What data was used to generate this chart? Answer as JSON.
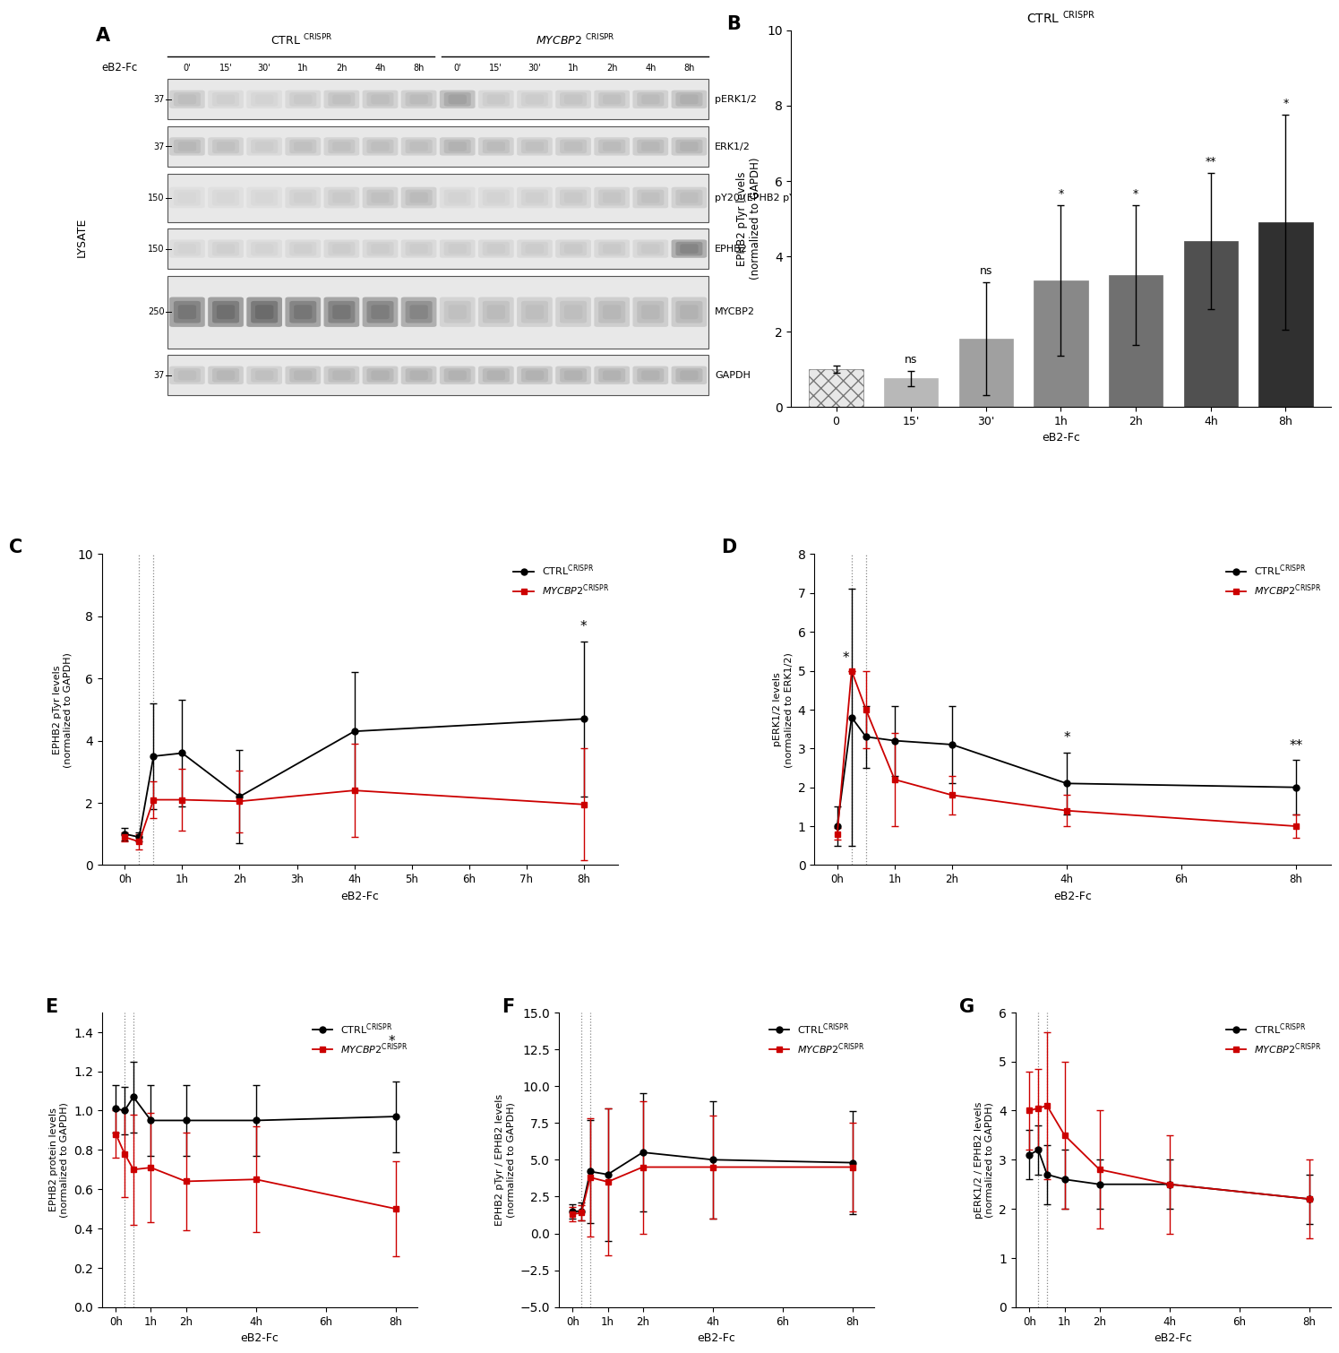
{
  "panel_B": {
    "categories": [
      "0",
      "15'",
      "30'",
      "1h",
      "2h",
      "4h",
      "8h"
    ],
    "values": [
      1.0,
      0.75,
      1.8,
      3.35,
      3.5,
      4.4,
      4.9
    ],
    "errors": [
      0.1,
      0.2,
      1.5,
      2.0,
      1.85,
      1.8,
      2.85
    ],
    "bar_colors": [
      "#d0d0d0",
      "#b8b8b8",
      "#a0a0a0",
      "#888888",
      "#707070",
      "#505050",
      "#303030"
    ],
    "significance": [
      "ns",
      "ns",
      "*",
      "*",
      "**",
      "*"
    ],
    "ylabel": "EPHB2 pTyr levels\n(normalized to GAPDH)",
    "xlabel": "eB2-Fc",
    "ylim": [
      0,
      10
    ]
  },
  "panel_C": {
    "ctrl_x": [
      0,
      0.25,
      0.5,
      1,
      2,
      4,
      8
    ],
    "ctrl_y": [
      1.0,
      0.9,
      3.5,
      3.6,
      2.2,
      4.3,
      4.7
    ],
    "ctrl_err": [
      0.2,
      0.15,
      1.7,
      1.7,
      1.5,
      1.9,
      2.5
    ],
    "mycbp2_x": [
      0,
      0.25,
      0.5,
      1,
      2,
      4,
      8
    ],
    "mycbp2_y": [
      0.9,
      0.75,
      2.1,
      2.1,
      2.05,
      2.4,
      1.95
    ],
    "mycbp2_err": [
      0.15,
      0.25,
      0.6,
      1.0,
      1.0,
      1.5,
      1.8
    ],
    "ylabel": "EPHB2 pTyr levels\n(normalized to GAPDH)",
    "xlabel": "eB2-Fc",
    "ylim": [
      0,
      10
    ],
    "xticks": [
      0,
      1,
      2,
      3,
      4,
      5,
      6,
      7,
      8
    ],
    "xticklabels": [
      "0h",
      "1h",
      "2h",
      "3h",
      "4h",
      "5h",
      "6h",
      "7h",
      "8h"
    ],
    "vlines": [
      0.25,
      0.5
    ],
    "xlim": [
      -0.4,
      8.6
    ]
  },
  "panel_D": {
    "ctrl_x": [
      0,
      0.25,
      0.5,
      1,
      2,
      4,
      8
    ],
    "ctrl_y": [
      1.0,
      3.8,
      3.3,
      3.2,
      3.1,
      2.1,
      2.0
    ],
    "ctrl_err": [
      0.5,
      3.3,
      0.8,
      0.9,
      1.0,
      0.8,
      0.7
    ],
    "mycbp2_x": [
      0,
      0.25,
      0.5,
      1,
      2,
      4,
      8
    ],
    "mycbp2_y": [
      0.8,
      5.0,
      4.0,
      2.2,
      1.8,
      1.4,
      1.0
    ],
    "mycbp2_err": [
      0.15,
      0.0,
      1.0,
      1.2,
      0.5,
      0.4,
      0.3
    ],
    "ylabel": "pERK1/2 levels\n(normalized to ERK1/2)",
    "xlabel": "eB2-Fc",
    "ylim": [
      0,
      8
    ],
    "xticks": [
      0,
      1,
      2,
      4,
      6,
      8
    ],
    "xticklabels": [
      "0h",
      "1h",
      "2h",
      "4h",
      "6h",
      "8h"
    ],
    "vlines": [
      0.25,
      0.5
    ],
    "xlim": [
      -0.4,
      8.6
    ]
  },
  "panel_E": {
    "ctrl_x": [
      0,
      0.25,
      0.5,
      1,
      2,
      4,
      8
    ],
    "ctrl_y": [
      1.01,
      1.0,
      1.07,
      0.95,
      0.95,
      0.95,
      0.97
    ],
    "ctrl_err": [
      0.12,
      0.12,
      0.18,
      0.18,
      0.18,
      0.18,
      0.18
    ],
    "mycbp2_x": [
      0,
      0.25,
      0.5,
      1,
      2,
      4,
      8
    ],
    "mycbp2_y": [
      0.88,
      0.78,
      0.7,
      0.71,
      0.64,
      0.65,
      0.5
    ],
    "mycbp2_err": [
      0.12,
      0.22,
      0.28,
      0.28,
      0.25,
      0.27,
      0.24
    ],
    "ylabel": "EPHB2 protein levels\n(normalized to GAPDH)",
    "xlabel": "eB2-Fc",
    "ylim": [
      0.0,
      1.5
    ],
    "xticks": [
      0,
      1,
      2,
      4,
      6,
      8
    ],
    "xticklabels": [
      "0h",
      "1h",
      "2h",
      "4h",
      "6h",
      "8h"
    ],
    "vlines": [
      0.25,
      0.5
    ],
    "xlim": [
      -0.4,
      8.6
    ]
  },
  "panel_F": {
    "ctrl_x": [
      0,
      0.25,
      0.5,
      1,
      2,
      4,
      8
    ],
    "ctrl_y": [
      1.5,
      1.5,
      4.2,
      4.0,
      5.5,
      5.0,
      4.8
    ],
    "ctrl_err": [
      0.5,
      0.6,
      3.5,
      4.5,
      4.0,
      4.0,
      3.5
    ],
    "mycbp2_x": [
      0,
      0.25,
      0.5,
      1,
      2,
      4,
      8
    ],
    "mycbp2_y": [
      1.3,
      1.4,
      3.8,
      3.5,
      4.5,
      4.5,
      4.5
    ],
    "mycbp2_err": [
      0.5,
      0.5,
      4.0,
      5.0,
      4.5,
      3.5,
      3.0
    ],
    "ylabel": "EPHB2 pTyr / EPHB2 levels\n(normalized to GAPDH)",
    "xlabel": "eB2-Fc",
    "ylim": [
      -5,
      15
    ],
    "xticks": [
      0,
      1,
      2,
      4,
      6,
      8
    ],
    "xticklabels": [
      "0h",
      "1h",
      "2h",
      "4h",
      "6h",
      "8h"
    ],
    "vlines": [
      0.25,
      0.5
    ],
    "xlim": [
      -0.4,
      8.6
    ]
  },
  "panel_G": {
    "ctrl_x": [
      0,
      0.25,
      0.5,
      1,
      2,
      4,
      8
    ],
    "ctrl_y": [
      3.1,
      3.2,
      2.7,
      2.6,
      2.5,
      2.5,
      2.2
    ],
    "ctrl_err": [
      0.5,
      0.5,
      0.6,
      0.6,
      0.5,
      0.5,
      0.5
    ],
    "mycbp2_x": [
      0,
      0.25,
      0.5,
      1,
      2,
      4,
      8
    ],
    "mycbp2_y": [
      4.0,
      4.05,
      4.1,
      3.5,
      2.8,
      2.5,
      2.2
    ],
    "mycbp2_err": [
      0.8,
      0.8,
      1.5,
      1.5,
      1.2,
      1.0,
      0.8
    ],
    "ylabel": "pERK1/2 / EPHB2 levels\n(normalized to GAPDH)",
    "xlabel": "eB2-Fc",
    "ylim": [
      0,
      6
    ],
    "xticks": [
      0,
      1,
      2,
      4,
      6,
      8
    ],
    "xticklabels": [
      "0h",
      "1h",
      "2h",
      "4h",
      "6h",
      "8h"
    ],
    "vlines": [
      0.25,
      0.5
    ],
    "xlim": [
      -0.4,
      8.6
    ]
  },
  "legend": {
    "ctrl_color": "#000000",
    "mycbp2_color": "#cc0000"
  },
  "blot": {
    "labels": [
      "pERK1/2",
      "ERK1/2",
      "pY20 (EPHB2 pY)",
      "EPHB2",
      "MYCBP2",
      "GAPDH"
    ],
    "mw_labels": [
      "37",
      "37",
      "150",
      "150",
      "250",
      "37"
    ],
    "band_intensities": [
      [
        0.7,
        0.82,
        0.85,
        0.78,
        0.72,
        0.7,
        0.68,
        0.5,
        0.78,
        0.8,
        0.75,
        0.72,
        0.68,
        0.6
      ],
      [
        0.65,
        0.72,
        0.8,
        0.72,
        0.72,
        0.7,
        0.7,
        0.62,
        0.68,
        0.72,
        0.7,
        0.68,
        0.65,
        0.62
      ],
      [
        0.88,
        0.88,
        0.88,
        0.82,
        0.78,
        0.72,
        0.68,
        0.85,
        0.85,
        0.82,
        0.78,
        0.75,
        0.72,
        0.7
      ],
      [
        0.85,
        0.82,
        0.85,
        0.82,
        0.8,
        0.8,
        0.8,
        0.8,
        0.8,
        0.8,
        0.78,
        0.78,
        0.78,
        0.3
      ],
      [
        0.2,
        0.15,
        0.12,
        0.2,
        0.2,
        0.25,
        0.3,
        0.72,
        0.68,
        0.7,
        0.7,
        0.65,
        0.65,
        0.62
      ],
      [
        0.7,
        0.65,
        0.72,
        0.65,
        0.65,
        0.62,
        0.62,
        0.62,
        0.62,
        0.62,
        0.62,
        0.62,
        0.62,
        0.6
      ]
    ],
    "row_heights_rel": [
      1.0,
      1.0,
      1.2,
      1.0,
      1.8,
      1.0
    ]
  }
}
